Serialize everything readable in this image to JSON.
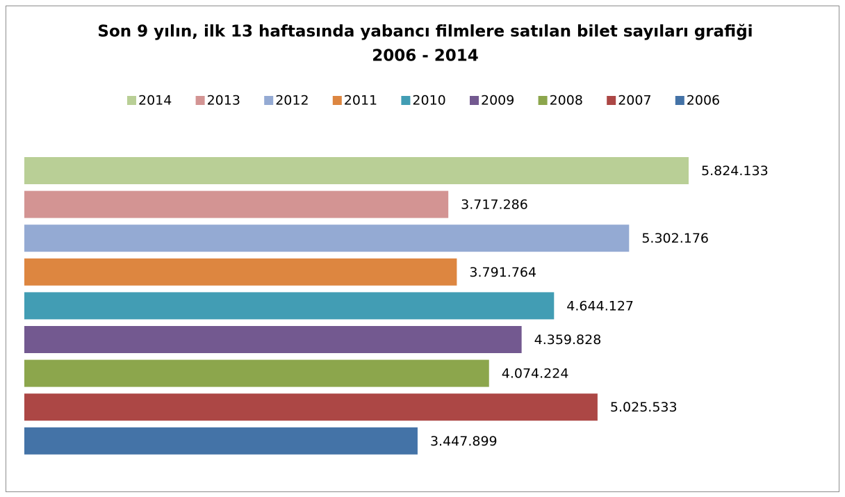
{
  "chart_data": {
    "type": "bar",
    "orientation": "horizontal",
    "title": "Son 9 yılın, ilk 13 haftasında yabancı filmlere satılan bilet sayıları grafiği",
    "subtitle": "2006 - 2014",
    "categories": [
      null
    ],
    "xlim": [
      0,
      7000000
    ],
    "legend": "top",
    "series": [
      {
        "name": "2014",
        "color": "#b9cf96",
        "values": [
          5824133
        ],
        "value_labels": [
          "5.824.133"
        ]
      },
      {
        "name": "2013",
        "color": "#d39493",
        "values": [
          3717286
        ],
        "value_labels": [
          "3.717.286"
        ]
      },
      {
        "name": "2012",
        "color": "#94aad3",
        "values": [
          5302176
        ],
        "value_labels": [
          "5.302.176"
        ]
      },
      {
        "name": "2011",
        "color": "#dd8640",
        "values": [
          3791764
        ],
        "value_labels": [
          "3.791.764"
        ]
      },
      {
        "name": "2010",
        "color": "#429db4",
        "values": [
          4644127
        ],
        "value_labels": [
          "4.644.127"
        ]
      },
      {
        "name": "2009",
        "color": "#735990",
        "values": [
          4359828
        ],
        "value_labels": [
          "4.359.828"
        ]
      },
      {
        "name": "2008",
        "color": "#8ca64c",
        "values": [
          4074224
        ],
        "value_labels": [
          "4.074.224"
        ]
      },
      {
        "name": "2007",
        "color": "#ac4745",
        "values": [
          5025533
        ],
        "value_labels": [
          "5.025.533"
        ]
      },
      {
        "name": "2006",
        "color": "#4473a7",
        "values": [
          3447899
        ],
        "value_labels": [
          "3.447.899"
        ]
      }
    ]
  }
}
